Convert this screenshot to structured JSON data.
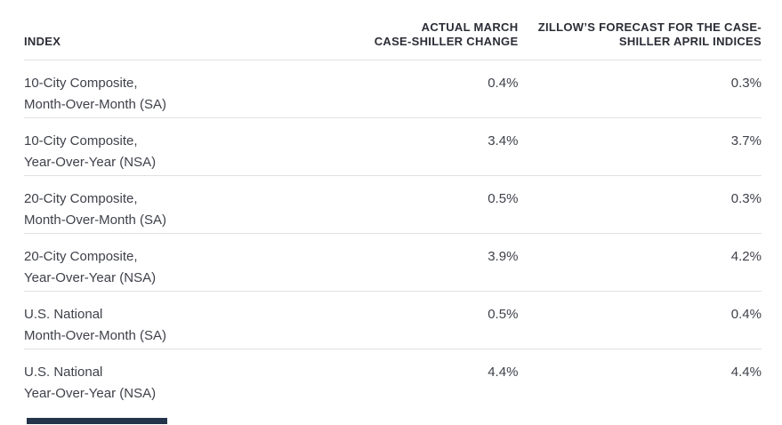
{
  "table": {
    "header": {
      "index": "INDEX",
      "actual": {
        "label": "ACTUAL MARCH CASE-SHILLER CHANGE",
        "lines": [
          "ACTUAL MARCH",
          "CASE-SHILLER CHANGE"
        ]
      },
      "forecast": {
        "label": "ZILLOW’S FORECAST FOR THE CASE-SHILLER APRIL INDICES",
        "lines": [
          "ZILLOW’S FORECAST FOR THE CASE-",
          "SHILLER APRIL INDICES"
        ]
      }
    },
    "rows": [
      {
        "index_lines": [
          "10-City Composite,",
          "Month-Over-Month (SA)"
        ],
        "actual": "0.4%",
        "forecast": "0.3%"
      },
      {
        "index_lines": [
          "10-City Composite,",
          "Year-Over-Year (NSA)"
        ],
        "actual": "3.4%",
        "forecast": "3.7%"
      },
      {
        "index_lines": [
          "20-City Composite,",
          "Month-Over-Month (SA)"
        ],
        "actual": "0.5%",
        "forecast": "0.3%"
      },
      {
        "index_lines": [
          "20-City Composite,",
          "Year-Over-Year (NSA)"
        ],
        "actual": "3.9%",
        "forecast": "4.2%"
      },
      {
        "index_lines": [
          "U.S. National",
          "Month-Over-Month (SA)"
        ],
        "actual": "0.5%",
        "forecast": "0.4%"
      },
      {
        "index_lines": [
          "U.S. National",
          "Year-Over-Year (NSA)"
        ],
        "actual": "4.4%",
        "forecast": "4.4%"
      }
    ]
  },
  "chart_data": {
    "type": "table",
    "title": "",
    "columns": [
      "INDEX",
      "ACTUAL MARCH CASE-SHILLER CHANGE",
      "ZILLOW’S FORECAST FOR THE CASE-SHILLER APRIL INDICES"
    ],
    "rows": [
      [
        "10-City Composite, Month-Over-Month (SA)",
        "0.4%",
        "0.3%"
      ],
      [
        "10-City Composite, Year-Over-Year (NSA)",
        "3.4%",
        "3.7%"
      ],
      [
        "20-City Composite, Month-Over-Month (SA)",
        "0.5%",
        "0.3%"
      ],
      [
        "20-City Composite, Year-Over-Year (NSA)",
        "3.9%",
        "4.2%"
      ],
      [
        "U.S. National, Month-Over-Month (SA)",
        "0.5%",
        "0.4%"
      ],
      [
        "U.S. National, Year-Over-Year (NSA)",
        "4.4%",
        "4.4%"
      ]
    ],
    "series": [
      {
        "name": "Actual March Case-Shiller change",
        "values": [
          0.4,
          3.4,
          0.5,
          3.9,
          0.5,
          4.4
        ]
      },
      {
        "name": "Zillow’s forecast for the Case-Shiller April indices",
        "values": [
          0.3,
          3.7,
          0.3,
          4.2,
          0.4,
          4.4
        ]
      }
    ],
    "categories": [
      "10-City Composite, Month-Over-Month (SA)",
      "10-City Composite, Year-Over-Year (NSA)",
      "20-City Composite, Month-Over-Month (SA)",
      "20-City Composite, Year-Over-Year (NSA)",
      "U.S. National Month-Over-Month (SA)",
      "U.S. National Year-Over-Year (NSA)"
    ],
    "value_unit": "%"
  },
  "colors": {
    "header_text": "#2b2d36",
    "body_text": "#3f414a",
    "divider": "#e1e1e4",
    "cutoff_bar": "#24344a",
    "background": "#ffffff"
  }
}
